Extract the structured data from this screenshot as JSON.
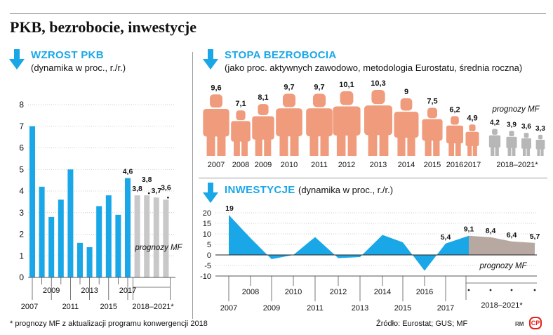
{
  "title": "PKB, bezrobocie, inwestycje",
  "colors": {
    "accent": "#1aa7e8",
    "forecast_gray": "#c8c8c8",
    "person": "#ef9b7c",
    "person_forecast": "#b7b7b7",
    "invest_forecast": "#b8a8a2"
  },
  "gdp": {
    "title": "WZROST PKB",
    "subtitle": "(dynamika w proc., r./r.)",
    "forecast_label": "prognozy MF",
    "chart_data": {
      "type": "bar",
      "categories": [
        "2007",
        "2008",
        "2009",
        "2010",
        "2011",
        "2012",
        "2013",
        "2014",
        "2015",
        "2016",
        "2017",
        "2018",
        "2019",
        "2020",
        "2021"
      ],
      "values": [
        7.0,
        4.2,
        2.8,
        3.6,
        5.0,
        1.6,
        1.4,
        3.3,
        3.8,
        2.9,
        4.6,
        3.8,
        3.8,
        3.7,
        3.6
      ],
      "forecast_from_index": 11,
      "data_labels": [
        "",
        "",
        "",
        "",
        "",
        "",
        "",
        "",
        "",
        "",
        "4,6",
        "3,8",
        "3,8",
        "3,7",
        "3,6"
      ],
      "y_ticks": [
        "0",
        "1",
        "2",
        "3",
        "4",
        "5",
        "6",
        "7",
        "8"
      ],
      "ylim": [
        0,
        8
      ],
      "x_tick_labels_lower": [
        "2007",
        "2011",
        "2015"
      ],
      "x_tick_labels_upper": [
        "2009",
        "2013",
        "2017"
      ],
      "forecast_range_label": "2018–2021*"
    }
  },
  "unemployment": {
    "title": "STOPA BEZROBOCIA",
    "subtitle": "(jako proc. aktywnych zawodowo, metodologia Eurostatu, średnia roczna)",
    "forecast_label": "prognozy MF",
    "chart_data": {
      "type": "bar",
      "categories": [
        "2007",
        "2008",
        "2009",
        "2010",
        "2011",
        "2012",
        "2013",
        "2014",
        "2015",
        "2016",
        "2017",
        "2018",
        "2019",
        "2020",
        "2021"
      ],
      "values": [
        9.6,
        7.1,
        8.1,
        9.7,
        9.7,
        10.1,
        10.3,
        9.0,
        7.5,
        6.2,
        4.9,
        4.2,
        3.9,
        3.6,
        3.3
      ],
      "data_labels": [
        "9,6",
        "7,1",
        "8,1",
        "9,7",
        "9,7",
        "10,1",
        "10,3",
        "9",
        "7,5",
        "6,2",
        "4,9",
        "4,2",
        "3,9",
        "3,6",
        "3,3"
      ],
      "x_tick_labels": [
        "2007",
        "2008",
        "2009",
        "2010",
        "2011",
        "2012",
        "2013",
        "2014",
        "2015",
        "2016",
        "2017"
      ],
      "forecast_range_label": "2018–2021*",
      "forecast_from_index": 11
    }
  },
  "investment": {
    "title": "INWESTYCJE",
    "subtitle": "(dynamika w proc., r./r.)",
    "forecast_label": "prognozy MF",
    "chart_data": {
      "type": "area",
      "x": [
        "2007",
        "2008",
        "2009",
        "2010",
        "2011",
        "2012",
        "2013",
        "2014",
        "2015",
        "2016",
        "2017",
        "2018",
        "2019",
        "2020",
        "2021"
      ],
      "values": [
        19,
        8,
        -2,
        0,
        8.5,
        -1.5,
        -1,
        9.5,
        6,
        -7.5,
        5.4,
        9.1,
        8.4,
        6.4,
        5.7
      ],
      "data_labels": [
        "19",
        "",
        "",
        "",
        "",
        "",
        "",
        "",
        "",
        "",
        "5,4",
        "9,1",
        "8,4",
        "6,4",
        "5,7"
      ],
      "y_ticks": [
        "20",
        "15",
        "10",
        "5",
        "0",
        "-5",
        "-10"
      ],
      "ylim": [
        -10,
        20
      ],
      "x_tick_labels_lower": [
        "2007",
        "2009",
        "2011",
        "2013",
        "2015",
        "2017"
      ],
      "x_tick_labels_upper": [
        "2008",
        "2010",
        "2012",
        "2014",
        "2016"
      ],
      "forecast_range_label": "2018–2021*",
      "forecast_from_index": 11
    }
  },
  "footnote": "* prognozy MF z aktualizacji programu konwergencji 2018",
  "source": "Źródło: Eurostat; GUS; MF",
  "logo_rm": "RM",
  "logo_cp": "CP"
}
